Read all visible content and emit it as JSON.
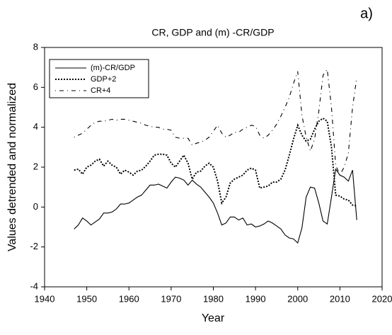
{
  "panel_label": "a)",
  "chart_data": {
    "type": "line",
    "title": "CR, GDP and (m) -CR/GDP",
    "x_label": "Year",
    "y_label": "Values detrended and normalized",
    "x": [
      1947,
      1948,
      1949,
      1950,
      1951,
      1952,
      1953,
      1954,
      1955,
      1956,
      1957,
      1958,
      1959,
      1960,
      1961,
      1962,
      1963,
      1964,
      1965,
      1966,
      1967,
      1968,
      1969,
      1970,
      1971,
      1972,
      1973,
      1974,
      1975,
      1976,
      1977,
      1978,
      1979,
      1980,
      1981,
      1982,
      1983,
      1984,
      1985,
      1986,
      1987,
      1988,
      1989,
      1990,
      1991,
      1992,
      1993,
      1994,
      1995,
      1996,
      1997,
      1998,
      1999,
      2000,
      2001,
      2002,
      2003,
      2004,
      2005,
      2006,
      2007,
      2008,
      2009,
      2010,
      2011,
      2012,
      2013,
      2014
    ],
    "series": [
      {
        "name": "(m)-CR/GDP",
        "color": "#000000",
        "line_style": "solid",
        "values": [
          -1.1,
          -0.9,
          -0.55,
          -0.7,
          -0.9,
          -0.75,
          -0.6,
          -0.3,
          -0.3,
          -0.25,
          -0.1,
          0.15,
          0.15,
          0.2,
          0.35,
          0.5,
          0.6,
          0.85,
          1.1,
          1.1,
          1.15,
          1.05,
          0.95,
          1.25,
          1.5,
          1.45,
          1.35,
          1.1,
          1.35,
          1.15,
          1.0,
          0.75,
          0.5,
          0.2,
          -0.3,
          -0.9,
          -0.8,
          -0.5,
          -0.5,
          -0.65,
          -0.55,
          -0.9,
          -0.85,
          -1.0,
          -0.95,
          -0.85,
          -0.7,
          -0.8,
          -0.95,
          -1.1,
          -1.4,
          -1.55,
          -1.6,
          -1.8,
          -1.05,
          0.5,
          1.0,
          0.95,
          0.2,
          -0.7,
          -0.85,
          0.5,
          1.9,
          1.6,
          1.5,
          1.3,
          1.85,
          -0.65
        ]
      },
      {
        "name": "GDP+2",
        "color": "#000000",
        "line_style": "dotted",
        "values": [
          1.85,
          1.9,
          1.65,
          2.0,
          2.1,
          2.3,
          2.4,
          2.05,
          2.3,
          2.1,
          2.0,
          1.65,
          1.85,
          1.75,
          1.6,
          1.8,
          1.85,
          2.05,
          2.3,
          2.6,
          2.65,
          2.65,
          2.6,
          2.2,
          2.0,
          2.3,
          2.6,
          2.2,
          1.4,
          1.75,
          1.8,
          2.05,
          2.2,
          2.0,
          1.3,
          0.2,
          0.5,
          1.2,
          1.4,
          1.5,
          1.6,
          1.85,
          1.95,
          1.85,
          0.95,
          1.0,
          1.05,
          1.25,
          1.25,
          1.4,
          1.85,
          2.6,
          3.4,
          4.1,
          3.6,
          3.3,
          3.4,
          3.9,
          4.3,
          4.45,
          4.3,
          3.0,
          0.6,
          0.55,
          0.4,
          0.35,
          0.1,
          0.05
        ]
      },
      {
        "name": "CR+4",
        "color": "#000000",
        "line_style": "dashdot",
        "values": [
          3.5,
          3.6,
          3.7,
          3.9,
          4.1,
          4.25,
          4.3,
          4.3,
          4.35,
          4.4,
          4.35,
          4.4,
          4.4,
          4.35,
          4.3,
          4.25,
          4.2,
          4.1,
          4.05,
          4.0,
          4.0,
          3.9,
          3.9,
          3.85,
          3.5,
          3.45,
          3.45,
          3.45,
          3.1,
          3.2,
          3.25,
          3.35,
          3.5,
          3.8,
          4.1,
          3.7,
          3.5,
          3.6,
          3.75,
          3.75,
          3.9,
          4.0,
          4.1,
          4.05,
          3.6,
          3.45,
          3.6,
          3.85,
          4.15,
          4.55,
          5.0,
          5.5,
          6.2,
          6.8,
          4.6,
          3.5,
          2.8,
          3.4,
          4.8,
          6.6,
          6.9,
          5.0,
          2.1,
          1.6,
          2.0,
          2.7,
          5.0,
          6.5
        ]
      }
    ],
    "xlim": [
      1940,
      2020
    ],
    "xticks": [
      1940,
      1950,
      1960,
      1970,
      1980,
      1990,
      2000,
      2010,
      2020
    ],
    "ylim": [
      -4,
      8
    ],
    "yticks": [
      -4,
      -2,
      0,
      2,
      4,
      6,
      8
    ],
    "legend": "upper-left",
    "grid": false
  }
}
